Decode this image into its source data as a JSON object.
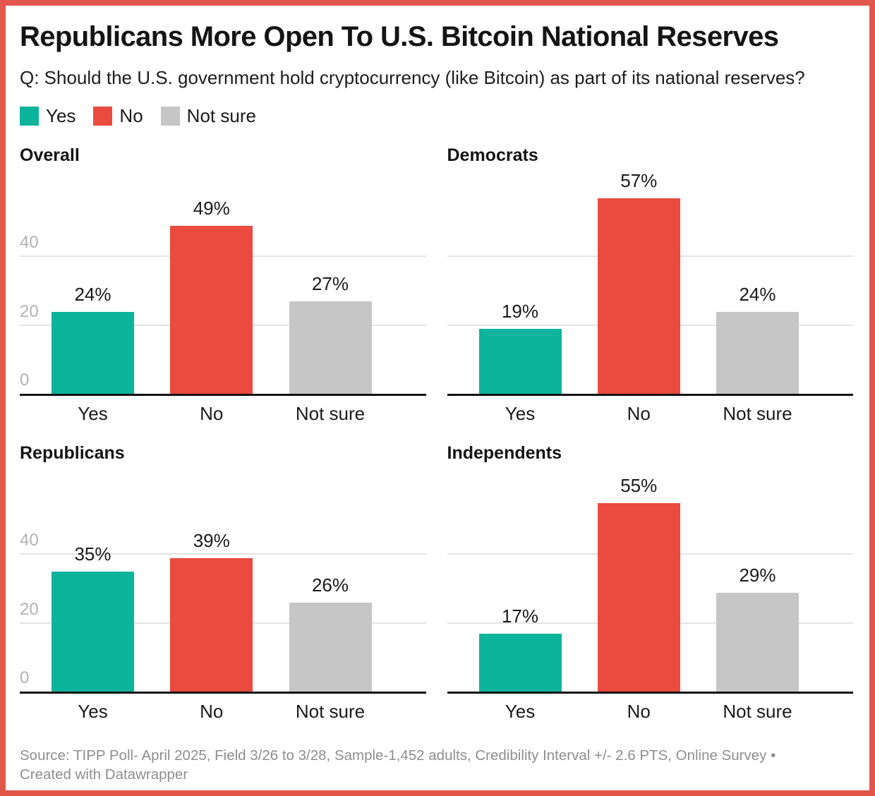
{
  "frame": {
    "border_color": "#E2564C",
    "background": "#ffffff"
  },
  "header": {
    "title": "Republicans More Open To U.S. Bitcoin National Reserves",
    "subtitle": "Q: Should the U.S. government hold cryptocurrency (like Bitcoin) as part of its national reserves?"
  },
  "legend": {
    "items": [
      {
        "label": "Yes",
        "color": "#0DB49C"
      },
      {
        "label": "No",
        "color": "#EB4A3F"
      },
      {
        "label": "Not sure",
        "color": "#C6C6C6"
      }
    ]
  },
  "chart_data": {
    "type": "bar",
    "layout": "2x2 small multiples",
    "categories": [
      "Yes",
      "No",
      "Not sure"
    ],
    "colors": [
      "#0DB49C",
      "#EB4A3F",
      "#C6C6C6"
    ],
    "unit": "%",
    "y_axis": {
      "ticks": [
        0,
        20,
        40
      ],
      "gridlines": [
        20,
        40
      ],
      "max": 65,
      "grid": true
    },
    "legend_position": "top-left",
    "panels": [
      {
        "title": "Overall",
        "values": [
          24,
          49,
          27
        ],
        "labels": [
          "24%",
          "49%",
          "27%"
        ],
        "show_y_ticks": true
      },
      {
        "title": "Democrats",
        "values": [
          19,
          57,
          24
        ],
        "labels": [
          "19%",
          "57%",
          "24%"
        ],
        "show_y_ticks": false
      },
      {
        "title": "Republicans",
        "values": [
          35,
          39,
          26
        ],
        "labels": [
          "35%",
          "39%",
          "26%"
        ],
        "show_y_ticks": true
      },
      {
        "title": "Independents",
        "values": [
          17,
          55,
          29
        ],
        "labels": [
          "17%",
          "55%",
          "29%"
        ],
        "show_y_ticks": false
      }
    ]
  },
  "footer": {
    "line1": "Source: TIPP Poll- April 2025, Field 3/26 to 3/28, Sample-1,452 adults, Credibility Interval +/- 2.6 PTS, Online Survey •",
    "line2": "Created with Datawrapper"
  }
}
